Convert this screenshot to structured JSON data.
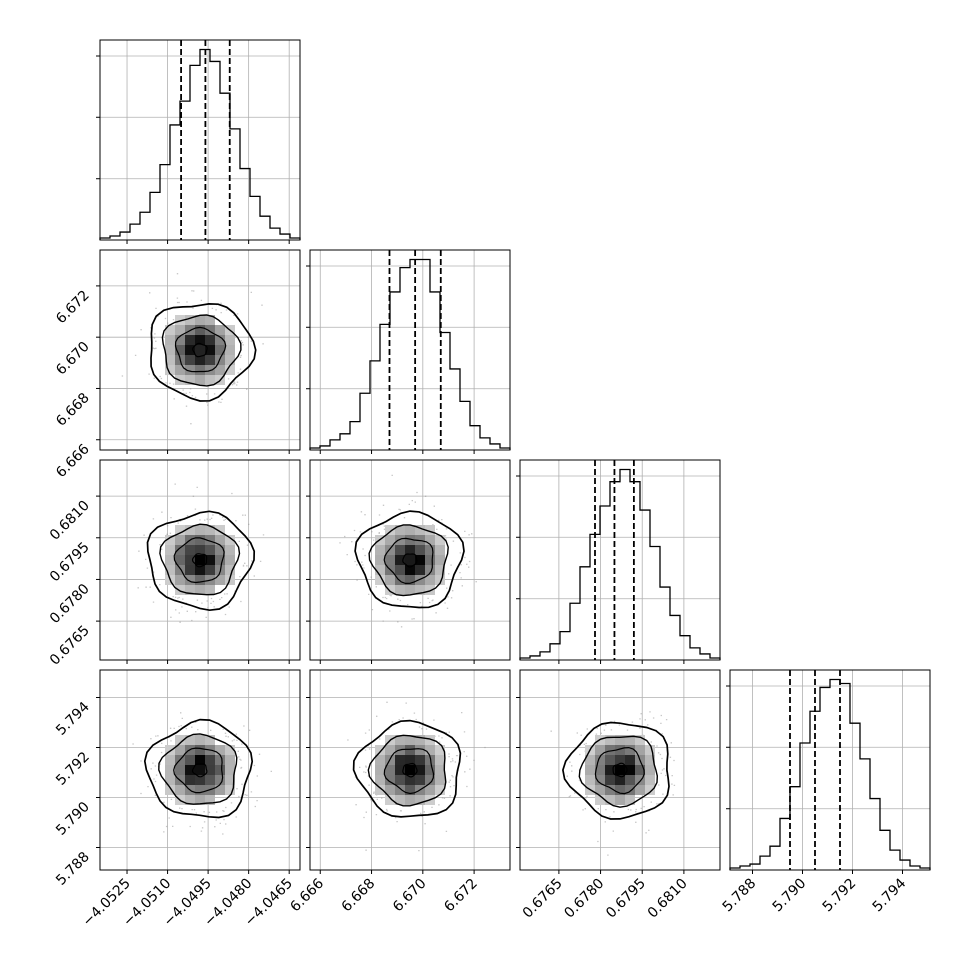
{
  "chart_data": {
    "type": "corner",
    "parameters": [
      {
        "range": [
          -4.0535,
          -4.0461
        ],
        "ticks": [
          -4.0525,
          -4.051,
          -4.0495,
          -4.048,
          -4.0465
        ],
        "tick_labels": [
          "−4.0525",
          "−4.0510",
          "−4.0495",
          "−4.0480",
          "−4.0465"
        ],
        "quantiles": [
          -4.0505,
          -4.0496,
          -4.0487
        ]
      },
      {
        "range": [
          6.6656,
          6.6734
        ],
        "ticks": [
          6.666,
          6.668,
          6.67,
          6.672
        ],
        "tick_labels": [
          "6.666",
          "6.668",
          "6.670",
          "6.672"
        ],
        "quantiles": [
          6.6687,
          6.6697,
          6.6707
        ]
      },
      {
        "range": [
          0.6751,
          0.6823
        ],
        "ticks": [
          0.6765,
          0.678,
          0.6795,
          0.681
        ],
        "tick_labels": [
          "0.6765",
          "0.6780",
          "0.6795",
          "0.6810"
        ],
        "quantiles": [
          0.6778,
          0.6785,
          0.6792
        ]
      },
      {
        "range": [
          5.7871,
          5.7951
        ],
        "ticks": [
          5.788,
          5.79,
          5.792,
          5.794
        ],
        "tick_labels": [
          "5.788",
          "5.790",
          "5.792",
          "5.794"
        ],
        "quantiles": [
          5.7895,
          5.7905,
          5.7915
        ]
      }
    ],
    "histograms": [
      [
        1,
        2,
        4,
        8,
        14,
        24,
        38,
        58,
        70,
        88,
        96,
        90,
        74,
        56,
        36,
        22,
        12,
        6,
        3,
        1
      ],
      [
        1,
        2,
        5,
        8,
        14,
        28,
        44,
        62,
        78,
        90,
        94,
        94,
        78,
        58,
        40,
        24,
        12,
        6,
        3,
        1
      ],
      [
        1,
        2,
        4,
        8,
        14,
        28,
        46,
        62,
        76,
        88,
        94,
        88,
        74,
        56,
        36,
        22,
        12,
        6,
        3,
        1
      ],
      [
        1,
        2,
        3,
        7,
        12,
        26,
        42,
        64,
        80,
        92,
        96,
        94,
        74,
        56,
        36,
        20,
        10,
        5,
        2,
        1
      ]
    ],
    "grid": true
  }
}
